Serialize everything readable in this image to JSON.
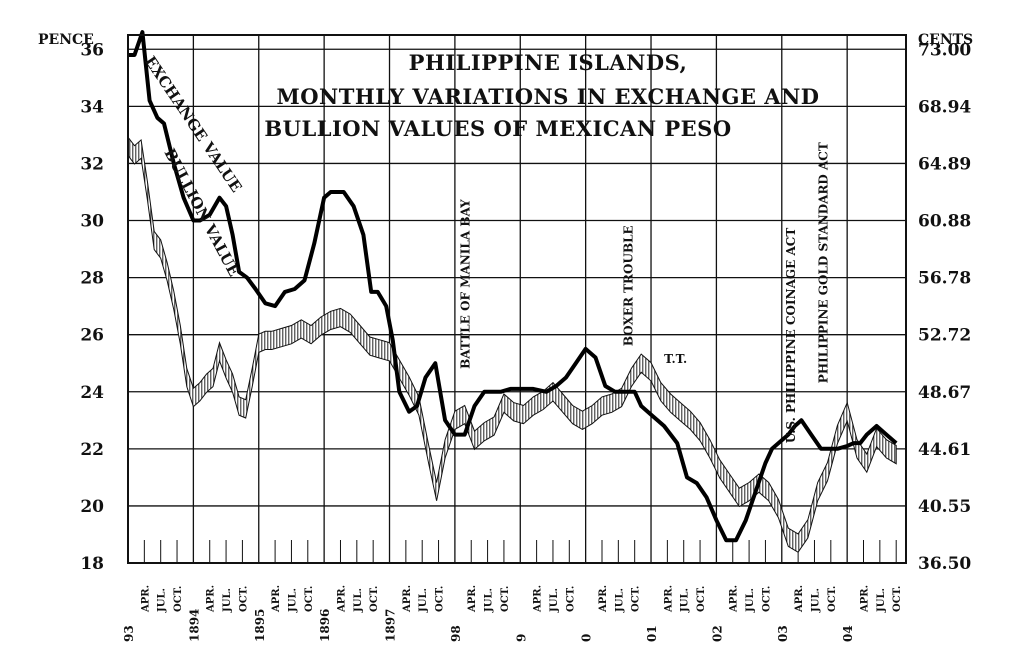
{
  "chart_data": {
    "type": "line",
    "title": {
      "lines": [
        "PHILIPPINE ISLANDS,",
        "MONTHLY VARIATIONS IN EXCHANGE AND",
        "BULLION VALUES OF MEXICAN PESO"
      ]
    },
    "left_axis": {
      "unit": "PENCE",
      "ylim": [
        18,
        36.5
      ],
      "ticks": [
        {
          "value": 18,
          "label": "18"
        },
        {
          "value": 20,
          "label": "20"
        },
        {
          "value": 22,
          "label": "22"
        },
        {
          "value": 24,
          "label": "24"
        },
        {
          "value": 26,
          "label": "26"
        },
        {
          "value": 28,
          "label": "28"
        },
        {
          "value": 30,
          "label": "30"
        },
        {
          "value": 32,
          "label": "32"
        },
        {
          "value": 34,
          "label": "34"
        },
        {
          "value": 36,
          "label": "36"
        }
      ]
    },
    "right_axis": {
      "unit": "CENTS",
      "labels": [
        {
          "at": 18,
          "label": "36.50"
        },
        {
          "at": 20,
          "label": "40.55"
        },
        {
          "at": 22,
          "label": "44.61"
        },
        {
          "at": 24,
          "label": "48.67"
        },
        {
          "at": 26,
          "label": "52.72"
        },
        {
          "at": 28,
          "label": "56.78"
        },
        {
          "at": 30,
          "label": "60.88"
        },
        {
          "at": 32,
          "label": "64.89"
        },
        {
          "at": 34,
          "label": "68.94"
        },
        {
          "at": 36,
          "label": "73.00"
        }
      ]
    },
    "x_axis": {
      "range": [
        1893.0,
        1904.9
      ],
      "years": [
        {
          "value": 1893,
          "label": "93"
        },
        {
          "value": 1894,
          "label": "1894"
        },
        {
          "value": 1895,
          "label": "1895"
        },
        {
          "value": 1896,
          "label": "1896"
        },
        {
          "value": 1897,
          "label": "1897"
        },
        {
          "value": 1898,
          "label": "98"
        },
        {
          "value": 1899,
          "label": "9"
        },
        {
          "value": 1900,
          "label": "0"
        },
        {
          "value": 1901,
          "label": "01"
        },
        {
          "value": 1902,
          "label": "02"
        },
        {
          "value": 1903,
          "label": "03"
        },
        {
          "value": 1904,
          "label": "04"
        }
      ],
      "month_labels": [
        "APR.",
        "JUL.",
        "OCT."
      ]
    },
    "series": [
      {
        "name": "EXCHANGE VALUE",
        "color": "#000000",
        "x": [
          1893.0,
          1893.1,
          1893.22,
          1893.33,
          1893.45,
          1893.55,
          1893.7,
          1893.85,
          1894.0,
          1894.1,
          1894.25,
          1894.4,
          1894.5,
          1894.6,
          1894.7,
          1894.82,
          1894.95,
          1895.1,
          1895.25,
          1895.4,
          1895.55,
          1895.7,
          1895.85,
          1896.0,
          1896.1,
          1896.2,
          1896.3,
          1896.45,
          1896.6,
          1896.72,
          1896.82,
          1896.95,
          1897.05,
          1897.15,
          1897.3,
          1897.42,
          1897.55,
          1897.7,
          1897.85,
          1898.0,
          1898.15,
          1898.3,
          1898.45,
          1898.55,
          1898.7,
          1898.85,
          1899.0,
          1899.2,
          1899.4,
          1899.55,
          1899.7,
          1899.85,
          1900.0,
          1900.15,
          1900.3,
          1900.45,
          1900.6,
          1900.75,
          1900.85,
          1901.0,
          1901.2,
          1901.4,
          1901.55,
          1901.7,
          1901.85,
          1902.0,
          1902.15,
          1902.3,
          1902.45,
          1902.6,
          1902.75,
          1902.85,
          1903.0,
          1903.1,
          1903.2,
          1903.3,
          1903.45,
          1903.6,
          1903.75,
          1903.85,
          1904.0,
          1904.1,
          1904.2,
          1904.3,
          1904.45,
          1904.6,
          1904.75
        ],
        "values": [
          35.8,
          35.8,
          36.6,
          34.2,
          33.6,
          33.4,
          32.0,
          30.8,
          30.0,
          30.0,
          30.2,
          30.8,
          30.5,
          29.5,
          28.2,
          28.0,
          27.6,
          27.1,
          27.0,
          27.5,
          27.6,
          27.9,
          29.2,
          30.8,
          31.0,
          31.0,
          31.0,
          30.5,
          29.5,
          27.5,
          27.5,
          27.0,
          25.8,
          24.0,
          23.3,
          23.5,
          24.5,
          25.0,
          23.0,
          22.5,
          22.5,
          23.5,
          24.0,
          24.0,
          24.0,
          24.1,
          24.1,
          24.1,
          24.0,
          24.2,
          24.5,
          25.0,
          25.5,
          25.2,
          24.2,
          24.0,
          24.0,
          24.0,
          23.5,
          23.2,
          22.8,
          22.2,
          21.0,
          20.8,
          20.3,
          19.5,
          18.8,
          18.8,
          19.5,
          20.5,
          21.5,
          22.0,
          22.3,
          22.5,
          22.8,
          23.0,
          22.5,
          22.0,
          22.0,
          22.0,
          22.1,
          22.2,
          22.2,
          22.5,
          22.8,
          22.5,
          22.2
        ]
      },
      {
        "name": "BULLION VALUE",
        "color": "#000000",
        "x": [
          1893.0,
          1893.1,
          1893.2,
          1893.3,
          1893.4,
          1893.5,
          1893.6,
          1893.7,
          1893.8,
          1893.9,
          1894.0,
          1894.1,
          1894.2,
          1894.3,
          1894.4,
          1894.5,
          1894.6,
          1894.7,
          1894.8,
          1894.9,
          1895.0,
          1895.1,
          1895.2,
          1895.35,
          1895.5,
          1895.65,
          1895.8,
          1895.95,
          1896.1,
          1896.25,
          1896.4,
          1896.55,
          1896.7,
          1896.85,
          1897.0,
          1897.15,
          1897.3,
          1897.45,
          1897.6,
          1897.72,
          1897.85,
          1898.0,
          1898.15,
          1898.3,
          1898.45,
          1898.6,
          1898.75,
          1898.9,
          1899.05,
          1899.2,
          1899.35,
          1899.5,
          1899.65,
          1899.8,
          1899.95,
          1900.1,
          1900.25,
          1900.4,
          1900.55,
          1900.7,
          1900.85,
          1901.0,
          1901.15,
          1901.3,
          1901.45,
          1901.6,
          1901.75,
          1901.9,
          1902.05,
          1902.2,
          1902.35,
          1902.5,
          1902.65,
          1902.8,
          1902.95,
          1903.1,
          1903.25,
          1903.4,
          1903.55,
          1903.7,
          1903.85,
          1904.0,
          1904.15,
          1904.3,
          1904.45,
          1904.6,
          1904.75
        ],
        "values": [
          32.6,
          32.3,
          32.5,
          31.0,
          29.3,
          29.0,
          28.2,
          27.2,
          26.0,
          24.5,
          23.8,
          24.0,
          24.3,
          24.5,
          25.4,
          24.8,
          24.3,
          23.5,
          23.4,
          24.5,
          25.7,
          25.8,
          25.8,
          25.9,
          26.0,
          26.2,
          26.0,
          26.3,
          26.5,
          26.6,
          26.4,
          26.0,
          25.6,
          25.5,
          25.4,
          24.8,
          24.2,
          23.5,
          21.8,
          20.5,
          22.0,
          23.0,
          23.2,
          22.3,
          22.6,
          22.8,
          23.6,
          23.3,
          23.2,
          23.5,
          23.7,
          24.0,
          23.6,
          23.2,
          23.0,
          23.2,
          23.5,
          23.6,
          23.8,
          24.5,
          25.0,
          24.7,
          24.0,
          23.6,
          23.3,
          23.0,
          22.6,
          22.0,
          21.3,
          20.8,
          20.3,
          20.5,
          20.8,
          20.5,
          19.9,
          18.9,
          18.7,
          19.2,
          20.5,
          21.2,
          22.5,
          23.3,
          22.0,
          21.5,
          22.4,
          22.0,
          21.8
        ]
      }
    ],
    "band_series_offsets": {
      "exchange_half_width": 0.22,
      "bullion_hatch": true
    },
    "annotations": [
      {
        "text": "BATTLE OF MANILA BAY",
        "x": 1898.22,
        "y": 24.8,
        "orientation": "vertical"
      },
      {
        "text": "BOXER TROUBLE",
        "x": 1900.72,
        "y": 25.6,
        "orientation": "vertical"
      },
      {
        "text": "T.T.",
        "x": 1901.2,
        "y": 25.0,
        "orientation": "horizontal"
      },
      {
        "text": "U.S. PHILIPPINE COINAGE ACT",
        "x": 1903.2,
        "y": 22.2,
        "orientation": "vertical"
      },
      {
        "text": "PHILIPPINE GOLD STANDARD ACT",
        "x": 1903.7,
        "y": 24.3,
        "orientation": "vertical"
      }
    ],
    "series_labels": [
      {
        "text": "EXCHANGE VALUE",
        "x": 1893.25,
        "y": 35.6
      },
      {
        "text": "BULLION VALUE",
        "x": 1893.55,
        "y": 32.4
      }
    ],
    "grid": true
  }
}
